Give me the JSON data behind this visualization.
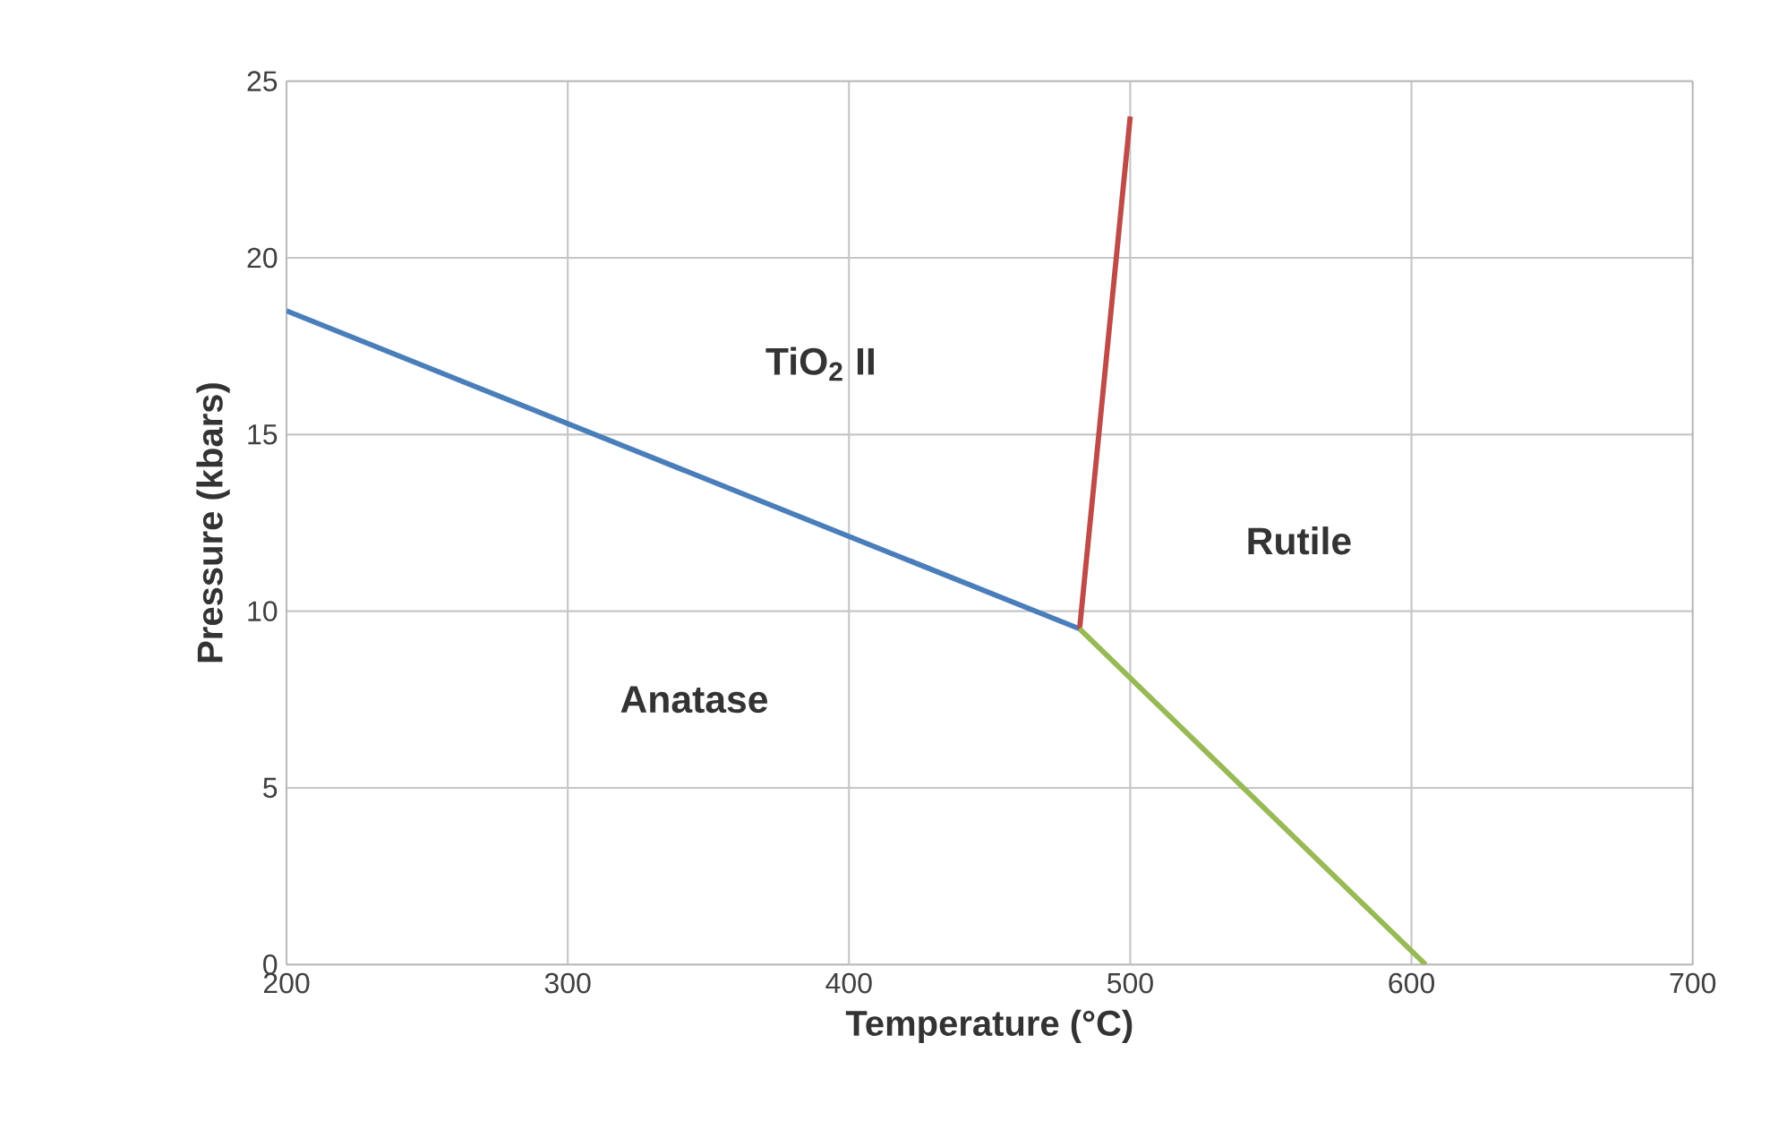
{
  "chart_data": {
    "type": "line",
    "xlabel": "Temperature (°C)",
    "ylabel": "Pressure (kbars)",
    "xlim": [
      200,
      700
    ],
    "ylim": [
      0,
      25
    ],
    "xticks": [
      200,
      300,
      400,
      500,
      600,
      700
    ],
    "yticks": [
      0,
      5,
      10,
      15,
      20,
      25
    ],
    "grid": true,
    "marker": "none",
    "line_style": "solid",
    "series": [
      {
        "color": "#4a7ebb",
        "x": [
          200,
          482
        ],
        "values": [
          18.5,
          9.5
        ]
      },
      {
        "color": "#be4b48",
        "x": [
          482,
          500
        ],
        "values": [
          9.5,
          24
        ]
      },
      {
        "color": "#98b954",
        "x": [
          482,
          605
        ],
        "values": [
          9.5,
          0
        ]
      }
    ],
    "annotations": [
      "TiO$_{2}$ II",
      "Rutile",
      "Anatase"
    ]
  }
}
